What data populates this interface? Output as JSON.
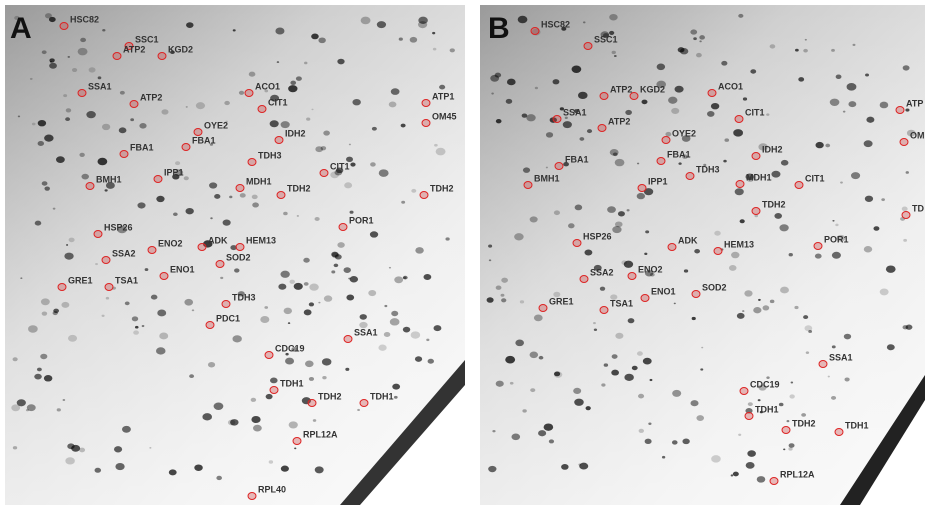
{
  "panels": [
    {
      "letter": "A",
      "labels": [
        "HSC82",
        "SSC1",
        "ATP2",
        "KGD2",
        "SSA1",
        "ATP2",
        "ACO1",
        "CIT1",
        "ATP1",
        "OM45",
        "OYE2",
        "IDH2",
        "FBA1",
        "FBA1",
        "TDH3",
        "CIT1",
        "BMH1",
        "IPP1",
        "MDH1",
        "TDH2",
        "TDH2",
        "POR1",
        "HSP26",
        "ENO2",
        "ADK",
        "HEM13",
        "SSA2",
        "SOD2",
        "ENO1",
        "GRE1",
        "TSA1",
        "TDH3",
        "PDC1",
        "SSA1",
        "CDC19",
        "TDH1",
        "TDH2",
        "TDH1",
        "RPL12A",
        "RPL40"
      ]
    },
    {
      "letter": "B",
      "labels": [
        "HSC82",
        "SSC1",
        "ATP2",
        "KGD2",
        "ACO1",
        "ATP",
        "SSA1",
        "ATP2",
        "CIT1",
        "OM",
        "OYE2",
        "IDH2",
        "FBA1",
        "FBA1",
        "TDH3",
        "MDH1",
        "CIT1",
        "BMH1",
        "IPP1",
        "TDH2",
        "TD",
        "POR1",
        "HSP26",
        "ADK",
        "HEM13",
        "ENO2",
        "SSA2",
        "ENO1",
        "SOD2",
        "GRE1",
        "TSA1",
        "SSA1",
        "CDC19",
        "TDH1",
        "TDH2",
        "TDH1",
        "RPL12A"
      ]
    }
  ]
}
